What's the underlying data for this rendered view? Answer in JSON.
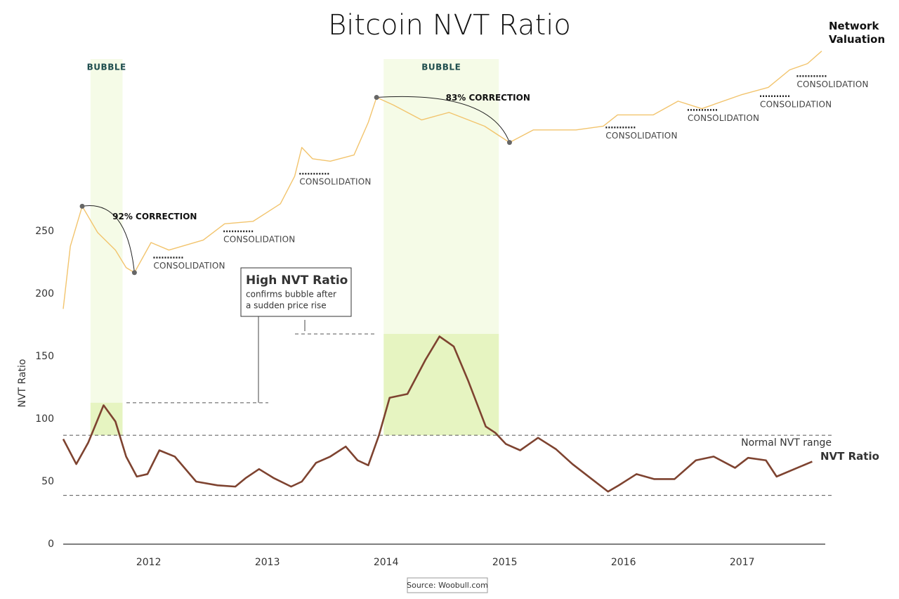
{
  "chart_data": {
    "type": "line",
    "title": "Bitcoin NVT Ratio",
    "y_label": "NVT Ratio",
    "source": "Source: Woobull.com",
    "xlim": [
      2011.28,
      2017.7
    ],
    "xticks": [
      2012,
      2013,
      2014,
      2015,
      2016,
      2017
    ],
    "ylim": [
      0,
      400
    ],
    "yticks": [
      0,
      50,
      100,
      150,
      200,
      250
    ],
    "grid": false,
    "series": [
      {
        "name": "NVT Ratio",
        "color": "#7e4330",
        "x": [
          2011.28,
          2011.39,
          2011.49,
          2011.62,
          2011.72,
          2011.81,
          2011.9,
          2011.99,
          2012.09,
          2012.22,
          2012.4,
          2012.58,
          2012.73,
          2012.82,
          2012.93,
          2013.05,
          2013.2,
          2013.29,
          2013.41,
          2013.53,
          2013.66,
          2013.76,
          2013.85,
          2013.94,
          2014.03,
          2014.18,
          2014.33,
          2014.45,
          2014.57,
          2014.69,
          2014.84,
          2014.92,
          2015.01,
          2015.13,
          2015.28,
          2015.43,
          2015.57,
          2015.72,
          2015.87,
          2015.96,
          2016.11,
          2016.26,
          2016.43,
          2016.61,
          2016.76,
          2016.94,
          2017.05,
          2017.2,
          2017.29,
          2017.44,
          2017.59
        ],
        "values": [
          84,
          64,
          81,
          111,
          98,
          70,
          54,
          56,
          75,
          70,
          50,
          47,
          46,
          53,
          60,
          53,
          46,
          50,
          65,
          70,
          78,
          67,
          63,
          87,
          117,
          120,
          147,
          166,
          158,
          131,
          94,
          89,
          80,
          75,
          85,
          76,
          64,
          53,
          42,
          47,
          56,
          52,
          52,
          67,
          70,
          61,
          69,
          67,
          54,
          60,
          66
        ]
      },
      {
        "name": "Network Valuation",
        "color": "#f2c46d",
        "x": [
          2011.28,
          2011.34,
          2011.44,
          2011.57,
          2011.72,
          2011.81,
          2011.88,
          2012.02,
          2012.17,
          2012.46,
          2012.64,
          2012.88,
          2013.11,
          2013.23,
          2013.29,
          2013.38,
          2013.53,
          2013.73,
          2013.85,
          2013.92,
          2014.06,
          2014.3,
          2014.53,
          2014.83,
          2015.04,
          2015.24,
          2015.6,
          2015.83,
          2015.95,
          2016.25,
          2016.46,
          2016.66,
          2016.99,
          2017.22,
          2017.4,
          2017.55,
          2017.67
        ],
        "values": [
          188,
          238,
          270,
          249,
          235,
          221,
          217,
          241,
          235,
          243,
          256,
          258,
          272,
          294,
          317,
          308,
          306,
          311,
          337,
          357,
          351,
          339,
          345,
          334,
          321,
          331,
          331,
          334,
          343,
          343,
          354,
          348,
          359,
          365,
          379,
          384,
          394
        ]
      }
    ],
    "bubbles": [
      {
        "label": "BUBBLE",
        "x": [
          2011.51,
          2011.78
        ],
        "high_nvt": 113
      },
      {
        "label": "BUBBLE",
        "x": [
          2013.98,
          2014.95
        ],
        "high_nvt": 168
      }
    ],
    "normal_range": {
      "label": "Normal NVT range",
      "values": [
        39,
        87
      ]
    },
    "corrections": [
      {
        "label": "92% CORRECTION",
        "from": [
          2011.44,
          270
        ],
        "to": [
          2011.88,
          217
        ]
      },
      {
        "label": "83% CORRECTION",
        "from": [
          2013.92,
          357
        ],
        "to": [
          2015.04,
          321
        ]
      }
    ],
    "consolidations": [
      {
        "label": "CONSOLIDATION",
        "x": 2012.04,
        "y": 229
      },
      {
        "label": "CONSOLIDATION",
        "x": 2012.63,
        "y": 250
      },
      {
        "label": "CONSOLIDATION",
        "x": 2013.27,
        "y": 296
      },
      {
        "label": "CONSOLIDATION",
        "x": 2015.85,
        "y": 333
      },
      {
        "label": "CONSOLIDATION",
        "x": 2016.54,
        "y": 347
      },
      {
        "label": "CONSOLIDATION",
        "x": 2017.15,
        "y": 358
      },
      {
        "label": "CONSOLIDATION",
        "x": 2017.46,
        "y": 374
      }
    ],
    "callout": {
      "title": "High NVT Ratio",
      "lines": [
        "confirms bubble after",
        "a sudden price rise"
      ]
    }
  }
}
